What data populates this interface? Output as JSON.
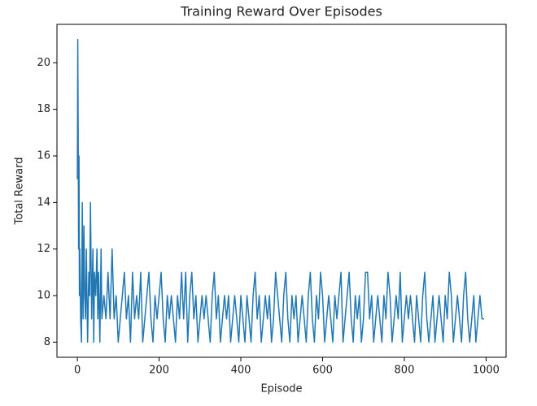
{
  "chart_data": {
    "type": "line",
    "title": "Training Reward Over Episodes",
    "x_label": "Episode",
    "y_label": "Total Reward",
    "x": [
      0,
      1,
      2,
      3,
      4,
      5,
      6,
      8,
      10,
      12,
      14,
      16,
      18,
      20,
      22,
      25,
      28,
      30,
      32,
      35,
      38,
      40,
      42,
      45,
      48,
      50,
      52,
      55,
      58,
      60,
      65,
      70,
      75,
      80,
      85,
      90,
      95,
      100,
      105,
      110,
      115,
      120,
      125,
      130,
      135,
      140,
      145,
      150,
      155,
      160,
      165,
      170,
      175,
      180,
      185,
      190,
      195,
      200,
      205,
      210,
      215,
      220,
      225,
      230,
      235,
      240,
      245,
      250,
      255,
      260,
      265,
      270,
      275,
      280,
      285,
      290,
      295,
      300,
      305,
      310,
      315,
      320,
      325,
      330,
      335,
      340,
      345,
      350,
      355,
      360,
      365,
      370,
      375,
      380,
      385,
      390,
      395,
      400,
      405,
      410,
      415,
      420,
      425,
      430,
      435,
      440,
      445,
      450,
      455,
      460,
      465,
      470,
      475,
      480,
      485,
      490,
      495,
      500,
      505,
      510,
      515,
      520,
      525,
      530,
      535,
      540,
      545,
      550,
      555,
      560,
      565,
      570,
      575,
      580,
      585,
      590,
      595,
      600,
      605,
      610,
      615,
      620,
      625,
      630,
      635,
      640,
      645,
      650,
      655,
      660,
      665,
      670,
      675,
      680,
      685,
      690,
      695,
      700,
      705,
      710,
      715,
      720,
      725,
      730,
      735,
      740,
      745,
      750,
      755,
      760,
      765,
      770,
      775,
      780,
      785,
      790,
      795,
      800,
      805,
      810,
      815,
      820,
      825,
      830,
      835,
      840,
      845,
      850,
      855,
      860,
      865,
      870,
      875,
      880,
      885,
      890,
      895,
      900,
      905,
      910,
      915,
      920,
      925,
      930,
      935,
      940,
      945,
      950,
      955,
      960,
      965,
      970,
      975,
      980,
      985,
      990,
      995
    ],
    "series": [
      {
        "name": "Total Reward",
        "color": "#1f77b4",
        "values": [
          15,
          21,
          17,
          12,
          16,
          10,
          12,
          9,
          8,
          14,
          9,
          13,
          10,
          9,
          12,
          8,
          11,
          10,
          14,
          9,
          12,
          8,
          11,
          10,
          12,
          9,
          11,
          8,
          12,
          9,
          10,
          9,
          11,
          9,
          12,
          9,
          10,
          8,
          9,
          10,
          11,
          9,
          10,
          8,
          11,
          9,
          10,
          9,
          11,
          8,
          9,
          10,
          11,
          9,
          8,
          10,
          9,
          10,
          11,
          9,
          8,
          10,
          9,
          10,
          9,
          8,
          10,
          9,
          11,
          9,
          11,
          8,
          10,
          11,
          9,
          10,
          8,
          9,
          10,
          9,
          10,
          9,
          8,
          10,
          11,
          9,
          10,
          8,
          9,
          10,
          9,
          10,
          8,
          9,
          10,
          9,
          8,
          10,
          9,
          8,
          10,
          9,
          8,
          10,
          11,
          9,
          10,
          8,
          9,
          10,
          9,
          10,
          8,
          9,
          11,
          10,
          9,
          8,
          10,
          11,
          9,
          8,
          10,
          9,
          10,
          8,
          9,
          10,
          9,
          8,
          10,
          11,
          9,
          8,
          10,
          9,
          11,
          10,
          8,
          9,
          10,
          9,
          8,
          10,
          9,
          10,
          11,
          8,
          9,
          10,
          11,
          9,
          8,
          10,
          9,
          10,
          8,
          9,
          11,
          11,
          9,
          10,
          8,
          9,
          10,
          9,
          8,
          10,
          9,
          11,
          10,
          8,
          9,
          10,
          9,
          11,
          8,
          9,
          10,
          9,
          10,
          9,
          8,
          10,
          9,
          8,
          10,
          11,
          9,
          8,
          9,
          10,
          8,
          9,
          10,
          9,
          8,
          10,
          9,
          11,
          10,
          8,
          9,
          10,
          9,
          8,
          10,
          11,
          9,
          8,
          9,
          10,
          8,
          9,
          10,
          9,
          9
        ]
      }
    ],
    "xlim": [
      -49.95,
      1048.95
    ],
    "ylim": [
      7.35,
      21.65
    ],
    "xticks": [
      0,
      200,
      400,
      600,
      800,
      1000
    ],
    "yticks": [
      8,
      10,
      12,
      14,
      16,
      18,
      20
    ]
  }
}
